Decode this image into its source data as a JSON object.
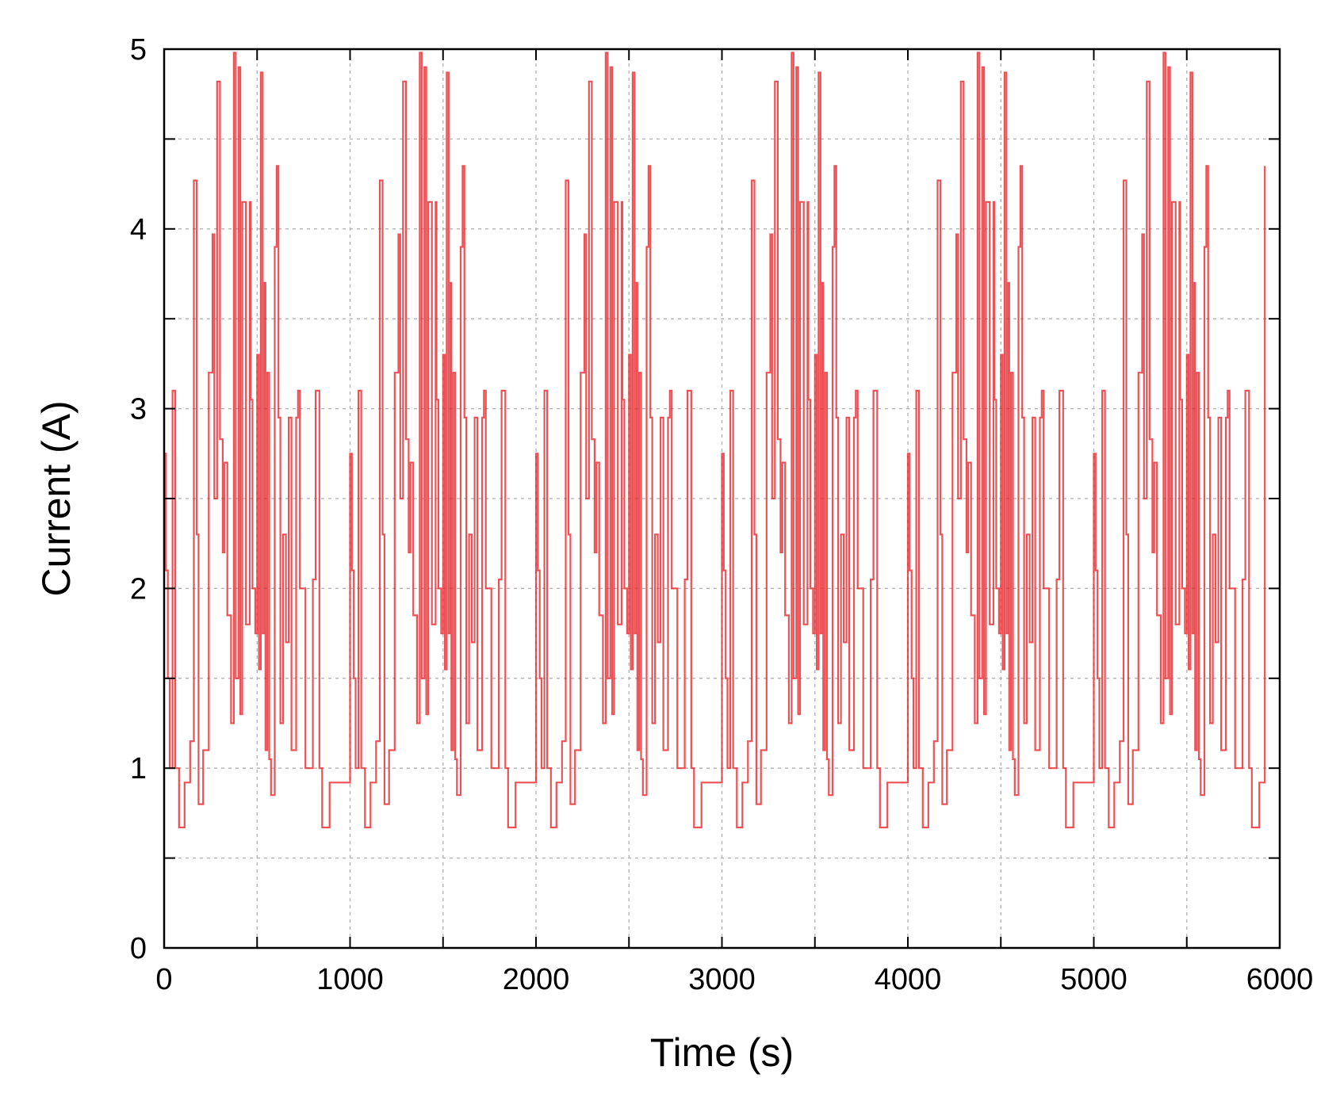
{
  "chart_data": {
    "type": "line",
    "title": "",
    "xlabel": "Time (s)",
    "ylabel": "Current (A)",
    "xlim": [
      0,
      6000
    ],
    "ylim": [
      0,
      5
    ],
    "x_ticks": [
      0,
      1000,
      2000,
      3000,
      4000,
      5000,
      6000
    ],
    "y_ticks": [
      0,
      1,
      2,
      3,
      4,
      5
    ],
    "grid": true,
    "line_style": "step",
    "colors": {
      "series": "#e8262a",
      "grid": "#b0b0b0",
      "axis": "#000000"
    },
    "series": [
      {
        "x": [
          0,
          10,
          20,
          30,
          45,
          60,
          80,
          100,
          110,
          120,
          130,
          140,
          160,
          175,
          185,
          200,
          210,
          225,
          240,
          260,
          270,
          285,
          300,
          315,
          325,
          340,
          360,
          375,
          385,
          400,
          410,
          420,
          440,
          460,
          465,
          475,
          490,
          500,
          510,
          520,
          530,
          540,
          545,
          555,
          565,
          575,
          585,
          595,
          605,
          615,
          625,
          640,
          655,
          670,
          685,
          700,
          710,
          720,
          730,
          740,
          760,
          780,
          800,
          815,
          835,
          850,
          860,
          870,
          880,
          890,
          900,
          920,
          940,
          960,
          980,
          990,
          1000
        ],
        "y": [
          2.75,
          2.1,
          1.5,
          1.0,
          3.1,
          1.0,
          0.67,
          0.67,
          0.92,
          0.92,
          0.92,
          1.15,
          4.27,
          2.3,
          0.8,
          0.8,
          1.1,
          1.1,
          3.2,
          3.97,
          2.5,
          4.82,
          2.83,
          2.2,
          2.7,
          1.85,
          1.25,
          4.98,
          1.5,
          4.9,
          1.3,
          4.15,
          1.8,
          4.15,
          3.05,
          2.0,
          1.75,
          3.3,
          1.55,
          4.87,
          1.75,
          3.7,
          1.1,
          3.2,
          1.05,
          0.85,
          0.85,
          3.9,
          4.35,
          2.95,
          1.25,
          2.3,
          1.7,
          2.95,
          1.1,
          1.1,
          2.95,
          3.1,
          2.0,
          2.0,
          1.0,
          1.0,
          2.05,
          3.1,
          1.0,
          0.67,
          0.67,
          0.67,
          0.67,
          0.92,
          0.92,
          0.92,
          0.92,
          0.92,
          0.92,
          0.92,
          0.92
        ],
        "note_unused": null
      }
    ]
  }
}
